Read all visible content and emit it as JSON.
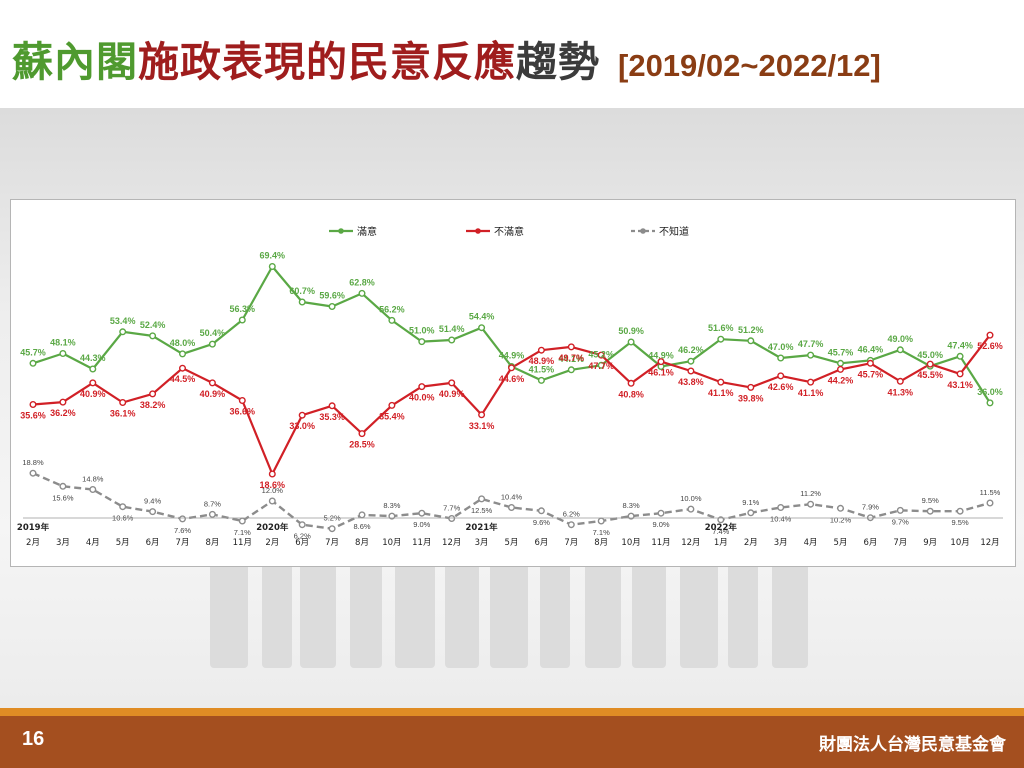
{
  "slide": {
    "title_part1": "蘇內閣",
    "title_part2": "施政表現的民意反應",
    "title_part3": "趨勢",
    "title_range": "[2019/02~2022/12]",
    "page_number": "16",
    "organization": "財團法人台灣民意基金會"
  },
  "colors": {
    "satisfied": "#5aa845",
    "dissatisfied": "#d12026",
    "unknown": "#8c8c8c",
    "title_green": "#4f9a2f",
    "title_red": "#9f1d1d",
    "footer": "#a44f1f",
    "footer_stripe": "#e08c24"
  },
  "chart_data": {
    "type": "line",
    "title": "",
    "xlabel": "",
    "ylabel": "",
    "ylim": [
      0,
      80
    ],
    "grid": false,
    "legend_position": "top-center",
    "x": [
      "2月",
      "3月",
      "4月",
      "5月",
      "6月",
      "7月",
      "8月",
      "11月",
      "2月",
      "6月",
      "7月",
      "8月",
      "10月",
      "11月",
      "12月",
      "3月",
      "5月",
      "6月",
      "7月",
      "8月",
      "10月",
      "11月",
      "12月",
      "1月",
      "2月",
      "3月",
      "4月",
      "5月",
      "6月",
      "7月",
      "9月",
      "10月",
      "12月"
    ],
    "years": [
      {
        "label": "2019年",
        "index": 0
      },
      {
        "label": "2020年",
        "index": 8
      },
      {
        "label": "2021年",
        "index": 15
      },
      {
        "label": "2022年",
        "index": 23
      }
    ],
    "series": [
      {
        "name": "滿意",
        "key": "satisfied",
        "values": [
          45.7,
          48.1,
          44.3,
          53.4,
          52.4,
          48.0,
          50.4,
          56.3,
          69.4,
          60.7,
          59.6,
          62.8,
          56.2,
          51.0,
          51.4,
          54.4,
          44.9,
          41.5,
          44.1,
          45.2,
          50.9,
          44.9,
          46.2,
          51.6,
          51.2,
          47.0,
          47.7,
          45.7,
          46.4,
          49.0,
          45.0,
          47.4,
          36.0
        ]
      },
      {
        "name": "不滿意",
        "key": "dissatisfied",
        "values": [
          35.6,
          36.2,
          40.9,
          36.1,
          38.2,
          44.5,
          40.9,
          36.6,
          18.6,
          33.0,
          35.3,
          28.5,
          35.4,
          40.0,
          40.9,
          33.1,
          44.6,
          48.9,
          49.7,
          47.7,
          40.8,
          46.1,
          43.8,
          41.1,
          39.8,
          42.6,
          41.1,
          44.2,
          45.7,
          41.3,
          45.5,
          43.1,
          52.6
        ]
      },
      {
        "name": "不知道",
        "key": "unknown",
        "values": [
          18.8,
          15.6,
          14.8,
          10.6,
          9.4,
          7.6,
          8.7,
          7.1,
          12.0,
          6.2,
          5.2,
          8.6,
          8.3,
          9.0,
          7.7,
          12.5,
          10.4,
          9.6,
          6.2,
          7.1,
          8.3,
          9.0,
          10.0,
          7.4,
          9.1,
          10.4,
          11.2,
          10.2,
          7.9,
          9.7,
          9.5,
          9.5,
          11.5
        ]
      }
    ]
  }
}
